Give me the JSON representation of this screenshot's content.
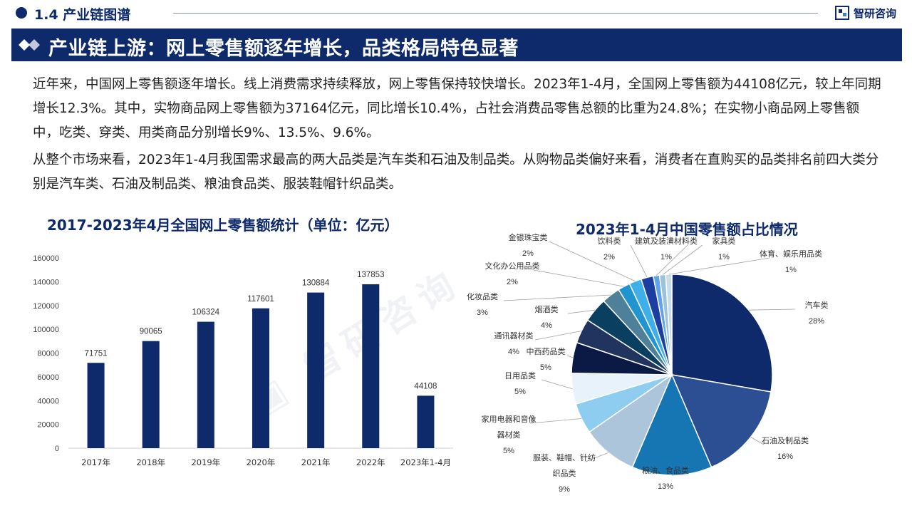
{
  "header": {
    "section_label": "1.4 产业链图谱",
    "brand_name": "智研咨询",
    "title": "产业链上游：网上零售额逐年增长，品类格局特色显著"
  },
  "body": {
    "paragraph_1": "近年来，中国网上零售额逐年增长。线上消费需求持续释放，网上零售保持较快增长。2023年1-4月，全国网上零售额为44108亿元，较上年同期增长12.3%。其中，实物商品网上零售额为37164亿元，同比增长10.4%，占社会消费品零售总额的比重为24.8%；在实物小商品网上零售额中，吃类、穿类、用类商品分别增长9%、13.5%、9.6%。",
    "paragraph_2": "从整个市场来看，2023年1-4月我国需求最高的两大品类是汽车类和石油及制品类。从购物品类偏好来看，消费者在直购买的品类排名前四大类分别是汽车类、石油及制品类、粮油食品类、服装鞋帽针织品类。"
  },
  "chart_data": [
    {
      "type": "bar",
      "title": "2017-2023年4月全国网上零售额统计（单位：亿元）",
      "categories": [
        "2017年",
        "2018年",
        "2019年",
        "2020年",
        "2021年",
        "2022年",
        "2023年1-4月"
      ],
      "values": [
        71751,
        90065,
        106324,
        117601,
        130884,
        137853,
        44108
      ],
      "value_labels": [
        "71751",
        "90065",
        "106324",
        "117601",
        "130884",
        "137853",
        "44108"
      ],
      "yticks": [
        "0",
        "20000",
        "40000",
        "60000",
        "80000",
        "100000",
        "120000",
        "140000",
        "160000"
      ],
      "ylim": [
        0,
        160000
      ],
      "color": "#0e2a6b",
      "grid": false,
      "legend": "none"
    },
    {
      "type": "pie",
      "title": "2023年1-4月中国零售额占比情况",
      "slices": [
        {
          "label": "汽车类",
          "pct_label": "28%",
          "value": 28,
          "color": "#0e2a6b"
        },
        {
          "label": "石油及制品类",
          "pct_label": "16%",
          "value": 16,
          "color": "#2c4f94"
        },
        {
          "label": "粮油、食品类",
          "pct_label": "13%",
          "value": 13,
          "color": "#1676b4"
        },
        {
          "label": "服装、鞋帽、针纺织品类",
          "pct_label": "9%",
          "value": 9,
          "color": "#adc5da"
        },
        {
          "label": "家用电器和音像器材类",
          "pct_label": "5%",
          "value": 5,
          "color": "#8ecdf0"
        },
        {
          "label": "日用品类",
          "pct_label": "5%",
          "value": 5,
          "color": "#e8f2fa"
        },
        {
          "label": "中西药品类",
          "pct_label": "5%",
          "value": 5,
          "color": "#0a1a44"
        },
        {
          "label": "通讯器材类",
          "pct_label": "4%",
          "value": 4,
          "color": "#21335f"
        },
        {
          "label": "烟酒类",
          "pct_label": "4%",
          "value": 4,
          "color": "#0b3f62"
        },
        {
          "label": "化妆品类",
          "pct_label": "3%",
          "value": 3,
          "color": "#4f8099"
        },
        {
          "label": "文化办公用品类",
          "pct_label": "2%",
          "value": 2,
          "color": "#1f94cf"
        },
        {
          "label": "金银珠宝类",
          "pct_label": "2%",
          "value": 2,
          "color": "#3eafe8"
        },
        {
          "label": "饮料类",
          "pct_label": "2%",
          "value": 2,
          "color": "#1c3ea0"
        },
        {
          "label": "建筑及装潢材料类",
          "pct_label": "1%",
          "value": 1,
          "color": "#5da4ea"
        },
        {
          "label": "家具类",
          "pct_label": "1%",
          "value": 1,
          "color": "#9cc2dc"
        },
        {
          "label": "体育、娱乐用品类",
          "pct_label": "1%",
          "value": 1,
          "color": "#c8dde9"
        }
      ],
      "legend": "none"
    }
  ]
}
